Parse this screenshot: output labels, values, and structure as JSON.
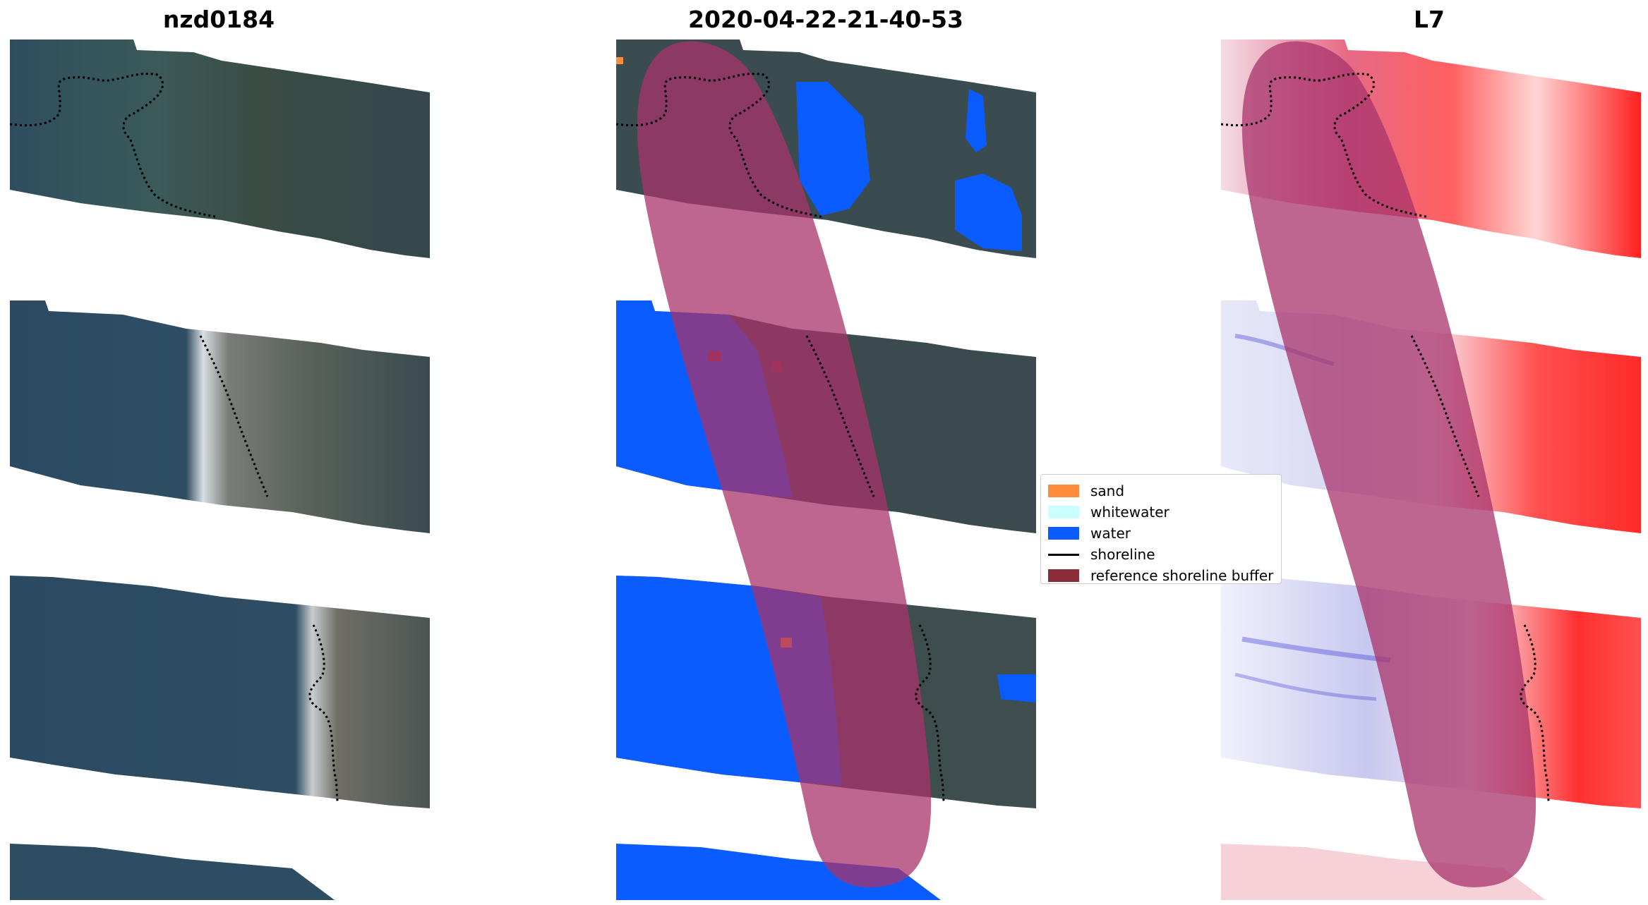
{
  "titles": {
    "rgb": "nzd0184",
    "classified": "2020-04-22-21-40-53",
    "index": "L7"
  },
  "legend": {
    "items": [
      {
        "label": "sand",
        "kind": "patch",
        "color": "#ff8c3a"
      },
      {
        "label": "whitewater",
        "kind": "patch",
        "color": "#c9ffff"
      },
      {
        "label": "water",
        "kind": "patch",
        "color": "#0b5cff"
      },
      {
        "label": "shoreline",
        "kind": "line",
        "color": "#000000"
      },
      {
        "label": "reference shoreline buffer",
        "kind": "patch",
        "color": "#8b2d36"
      }
    ]
  },
  "colors": {
    "land": "#35494c",
    "water_rgb": "#2e4b63",
    "water_class": "#0b5cff",
    "buffer": "#a8336b",
    "index_high": "#ff1a1a",
    "index_low": "#3030d0"
  }
}
